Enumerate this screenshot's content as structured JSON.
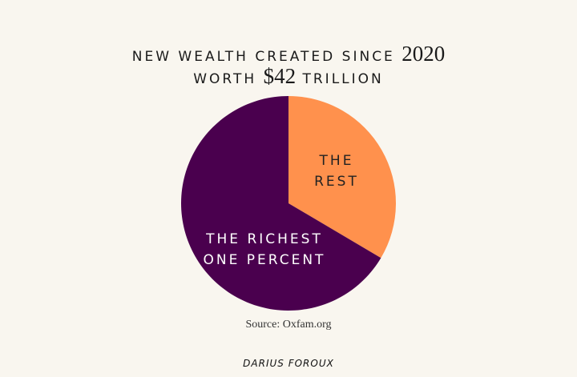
{
  "title": {
    "line1_text": "NEW WEALTH CREATED SINCE",
    "line1_year": "2020",
    "line2_pre": "WORTH",
    "line2_amount": "$42",
    "line2_post": "TRILLION"
  },
  "chart_data": {
    "type": "pie",
    "title": "NEW WEALTH CREATED SINCE 2020 WORTH $42 TRILLION",
    "slices": [
      {
        "label": "THE REST",
        "value": 33.5,
        "color": "#ff914d"
      },
      {
        "label": "THE RICHEST ONE PERCENT",
        "value": 66.5,
        "color": "#4a004e"
      }
    ],
    "start": "12 o'clock, clockwise"
  },
  "labels": {
    "rest_line1": "THE",
    "rest_line2": "REST",
    "rich_line1": "THE RICHEST",
    "rich_line2": "ONE PERCENT"
  },
  "source": "Source: Oxfam.org",
  "signature": "DARIUS FOROUX",
  "colors": {
    "background": "#f9f6ef"
  }
}
